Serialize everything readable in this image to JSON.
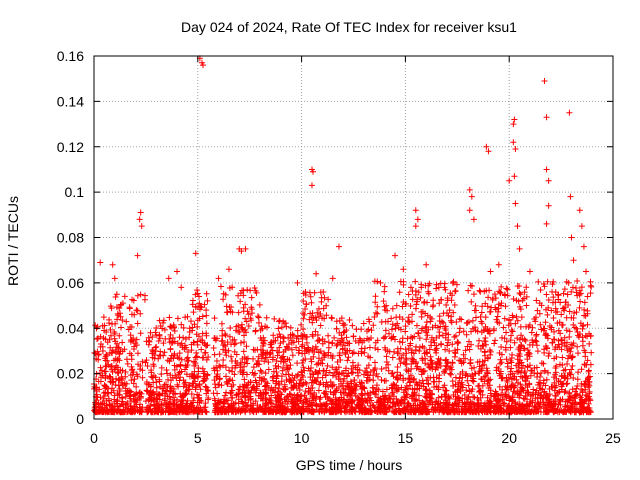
{
  "chart_data": {
    "type": "scatter",
    "title": "Day 024 of 2024, Rate Of TEC Index for receiver ksu1",
    "xlabel": "GPS time / hours",
    "ylabel": "ROTI / TECUs",
    "xlim": [
      0,
      25
    ],
    "ylim": [
      0,
      0.16
    ],
    "xticks": [
      0,
      5,
      10,
      15,
      20,
      25
    ],
    "xtick_labels": [
      "0",
      "5",
      "10",
      "15",
      "20",
      "25"
    ],
    "yticks": [
      0,
      0.02,
      0.04,
      0.06,
      0.08,
      0.1,
      0.12,
      0.14,
      0.16
    ],
    "ytick_labels": [
      "0",
      "0.02",
      "0.04",
      "0.06",
      "0.08",
      "0.1",
      "0.12",
      "0.14",
      "0.16"
    ],
    "grid": true,
    "marker": "+",
    "marker_color": "#ff0000",
    "series": [
      {
        "name": "ROTI",
        "points": [
          [
            0.3,
            0.069
          ],
          [
            0.9,
            0.068
          ],
          [
            1.0,
            0.062
          ],
          [
            1.1,
            0.055
          ],
          [
            2.1,
            0.072
          ],
          [
            2.2,
            0.088
          ],
          [
            2.25,
            0.091
          ],
          [
            2.3,
            0.085
          ],
          [
            3.6,
            0.062
          ],
          [
            4.0,
            0.065
          ],
          [
            4.2,
            0.058
          ],
          [
            4.9,
            0.073
          ],
          [
            5.1,
            0.159
          ],
          [
            5.2,
            0.157
          ],
          [
            5.25,
            0.156
          ],
          [
            5.4,
            0.048
          ],
          [
            6.0,
            0.062
          ],
          [
            6.5,
            0.066
          ],
          [
            7.0,
            0.075
          ],
          [
            7.1,
            0.074
          ],
          [
            7.3,
            0.075
          ],
          [
            9.8,
            0.06
          ],
          [
            10.5,
            0.11
          ],
          [
            10.55,
            0.109
          ],
          [
            10.5,
            0.103
          ],
          [
            10.7,
            0.064
          ],
          [
            11.5,
            0.062
          ],
          [
            11.8,
            0.076
          ],
          [
            13.8,
            0.06
          ],
          [
            14.5,
            0.072
          ],
          [
            14.9,
            0.066
          ],
          [
            15.5,
            0.092
          ],
          [
            15.6,
            0.088
          ],
          [
            15.5,
            0.085
          ],
          [
            16.0,
            0.068
          ],
          [
            17.3,
            0.06
          ],
          [
            18.1,
            0.101
          ],
          [
            18.2,
            0.098
          ],
          [
            18.1,
            0.092
          ],
          [
            18.3,
            0.088
          ],
          [
            18.9,
            0.12
          ],
          [
            19.0,
            0.118
          ],
          [
            19.1,
            0.065
          ],
          [
            19.5,
            0.068
          ],
          [
            20.0,
            0.105
          ],
          [
            20.2,
            0.13
          ],
          [
            20.25,
            0.132
          ],
          [
            20.2,
            0.122
          ],
          [
            20.3,
            0.119
          ],
          [
            20.25,
            0.107
          ],
          [
            20.3,
            0.095
          ],
          [
            20.4,
            0.085
          ],
          [
            20.5,
            0.075
          ],
          [
            21.0,
            0.065
          ],
          [
            21.7,
            0.149
          ],
          [
            21.8,
            0.133
          ],
          [
            21.8,
            0.11
          ],
          [
            21.9,
            0.105
          ],
          [
            21.9,
            0.094
          ],
          [
            21.8,
            0.086
          ],
          [
            22.9,
            0.135
          ],
          [
            22.95,
            0.098
          ],
          [
            23.0,
            0.08
          ],
          [
            23.4,
            0.092
          ],
          [
            23.5,
            0.085
          ],
          [
            23.6,
            0.076
          ],
          [
            23.7,
            0.065
          ],
          [
            23.1,
            0.07
          ]
        ]
      }
    ]
  }
}
